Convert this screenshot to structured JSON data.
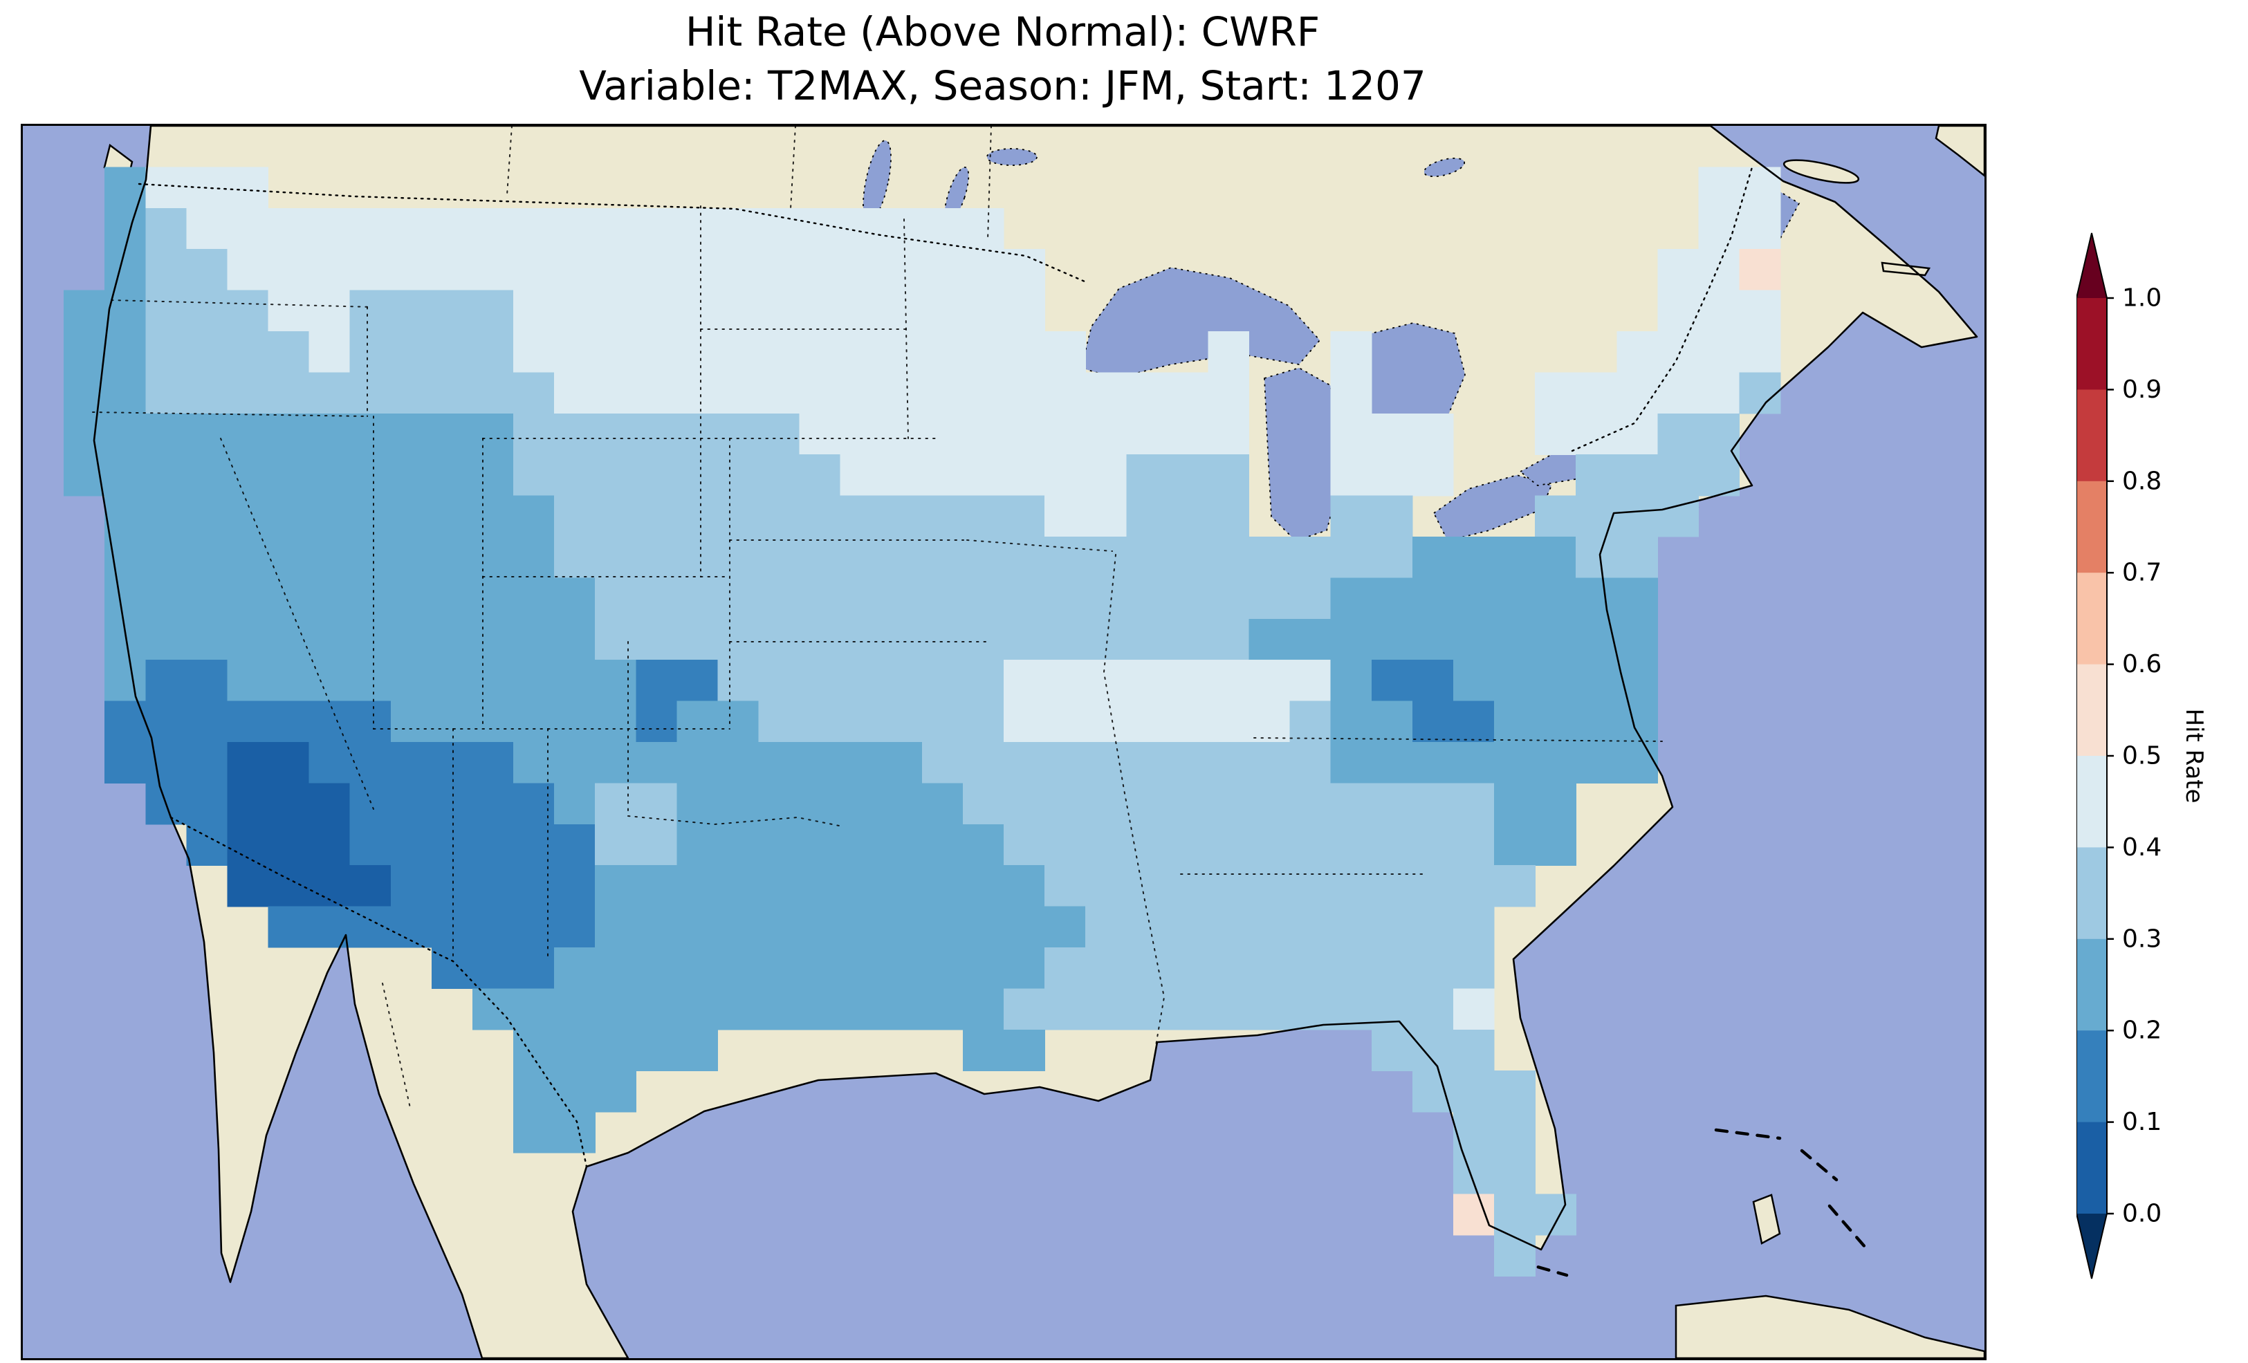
{
  "map": {
    "ocean_color": "#98a8da",
    "lake_color": "#8da0d4",
    "land_color": "#ede9d1",
    "coast_color": "#000000"
  },
  "colorbar": {
    "label": "Hit Rate",
    "ticks": [
      "1.0",
      "0.9",
      "0.8",
      "0.7",
      "0.6",
      "0.5",
      "0.4",
      "0.3",
      "0.2",
      "0.1",
      "0.0"
    ],
    "over_color": "#67001f",
    "under_color": "#053061",
    "bands_top_to_bottom": [
      {
        "range": "0.9-1.0",
        "color": "#9c1127"
      },
      {
        "range": "0.8-0.9",
        "color": "#c43b3d"
      },
      {
        "range": "0.7-0.8",
        "color": "#e48065"
      },
      {
        "range": "0.6-0.7",
        "color": "#f9c3a9"
      },
      {
        "range": "0.5-0.6",
        "color": "#f8e0d2"
      },
      {
        "range": "0.4-0.5",
        "color": "#dcebf2"
      },
      {
        "range": "0.3-0.4",
        "color": "#9ec9e2"
      },
      {
        "range": "0.2-0.3",
        "color": "#67abd0"
      },
      {
        "range": "0.1-0.2",
        "color": "#3580bc"
      },
      {
        "range": "0.0-0.1",
        "color": "#1a5fa5"
      }
    ]
  },
  "chart_data": {
    "type": "heatmap",
    "title": "Hit Rate (Above Normal): CWRF",
    "subtitle": "Variable: T2MAX, Season: JFM, Start: 1207",
    "metric": "Hit Rate (Above Normal)",
    "model": "CWRF",
    "variable": "T2MAX",
    "season": "JFM",
    "start": "1207",
    "colorbar_label": "Hit Rate",
    "colorbar_range": [
      0.0,
      1.0
    ],
    "colorbar_step": 0.1,
    "legend_position": "right",
    "region": "Contiguous United States",
    "grid_legend": "Each row is 48 cells spanning the map; '.' = no data (ocean or non-US land). Letters are hit-rate bins.",
    "value_bins": {
      "a": [
        0.4,
        0.5
      ],
      "b": [
        0.3,
        0.4
      ],
      "c": [
        0.2,
        0.3
      ],
      "d": [
        0.1,
        0.2
      ],
      "e": [
        0.0,
        0.1
      ],
      "p": [
        0.5,
        0.6
      ]
    },
    "bin_colors": {
      "a": "#dcebf2",
      "b": "#9ec9e2",
      "c": "#67abd0",
      "d": "#3580bc",
      "e": "#1a5fa5",
      "p": "#f8e0d2"
    },
    "grid": [
      "................................................",
      "..caaa...................................aa.....",
      "..cbaaaaaaaaaaaaaaaaaaaa.................aa.....",
      "..cbbaaaaaaaaaaaaaaaaaaaa...............aap.....",
      ".ccbbbaabbbbaaaaaaaaaaaaa...............aaa.....",
      ".ccbbbbabbbbaaaaaaaaaaaaaa...a..a......aaaa.....",
      ".ccbbbbbbbbbbaaaaaaaaaaaaaaaaa..a....aaaaab.....",
      ".cccccccccccbbbbbbbaaaaaaaaaaa..aaa..aaabb......",
      ".cccccccccccbbbbbbbbaaaaaaabbb..aaa...bbbb......",
      "..cccccccccccbbbbbbbbbbbbaabbb..bb...bbbb.......",
      "..cccccccccccbbbbbbbbbbbbbbbbbbbbbccccbb........",
      "..ccccccccccccbbbbbbbbbbbbbbbbbbcccccccc........",
      "..ccccccccccccbbbbbbbbbbbbbbbbcccccccccc........",
      "..cddccccccccccddbbbbbbbaaaaaaaacddccccc........",
      "..dddddddccccccdccbbbbbbaaaaaaabccddcccc........",
      "..dddeedddddccccccccccbbbbbbbbbbcccccccc........",
      "...ddeeedddddcbbcccccccbbbbbbbbbbbbbcc..........",
      "....deeeddddddbbccccccccbbbbbbbbbbbbcc..........",
      ".....eeeedddddcccccccccccbbbbbbbbbbbb...........",
      "......ddddddddccccccccccccbbbbbbbbbb............",
      "..........dddccccccccccccbbbbbbbbbbb............",
      "...........cccccccccccccbbbbbbbbbbba............",
      "............ccccc......cc........bbb............",
      "............ccc...................bbb...........",
      "............cc.....................bb...........",
      "...................................bb...........",
      "...................................pbb..........",
      "....................................b...........",
      "................................................",
      "................................................"
    ],
    "regional_summary": [
      {
        "region": "Southwest (AZ / NM / W Texas core)",
        "hit_rate": "0.0-0.2"
      },
      {
        "region": "Interior West, Texas, Mid-Atlantic (VA/NC)",
        "hit_rate": "0.2-0.3"
      },
      {
        "region": "Central Plains, Midwest, Southeast, Florida",
        "hit_rate": "0.3-0.4"
      },
      {
        "region": "Northern tier, Upper Midwest, New England",
        "hit_rate": "0.4-0.5"
      },
      {
        "region": "Isolated cells (northern Maine, south Florida)",
        "hit_rate": "0.5-0.6"
      }
    ]
  }
}
